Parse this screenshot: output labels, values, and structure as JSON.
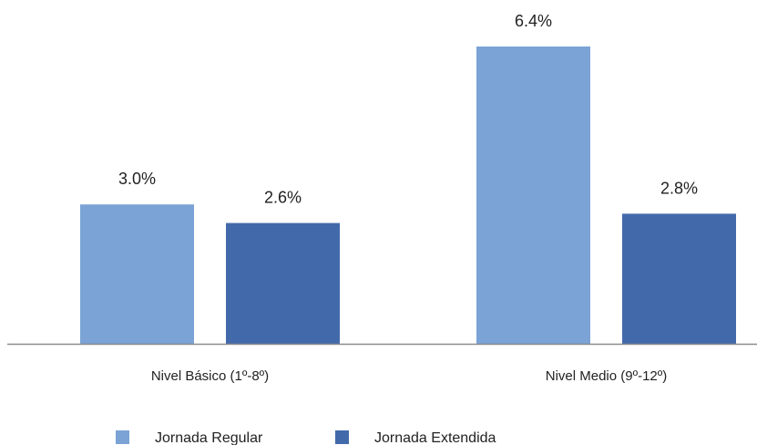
{
  "chart_data": {
    "type": "bar",
    "categories": [
      "Nivel Básico (1º-8º)",
      "Nivel Medio (9º-12º)"
    ],
    "series": [
      {
        "name": "Jornada Regular",
        "values": [
          3.0,
          6.4
        ],
        "value_labels": [
          "3.0%",
          "6.4%"
        ],
        "color": "#7BA3D6"
      },
      {
        "name": "Jornada Extendida",
        "values": [
          2.6,
          2.8
        ],
        "value_labels": [
          "2.6%",
          "2.8%"
        ],
        "color": "#426AAB"
      }
    ],
    "title": "",
    "xlabel": "",
    "ylabel": "",
    "ylim": [
      0,
      6.4
    ],
    "grid": false,
    "legend_position": "bottom-left",
    "axis_color": "#8C8C8C"
  }
}
